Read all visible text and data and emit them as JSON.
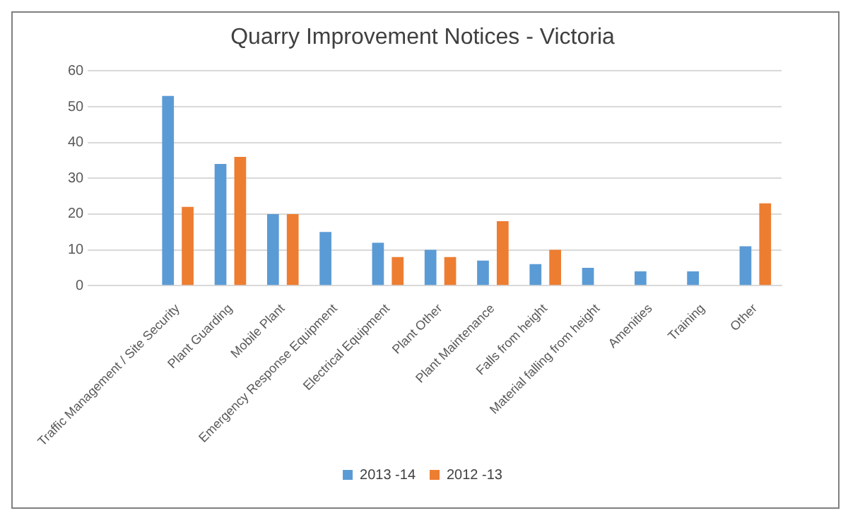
{
  "chart_data": {
    "type": "bar",
    "title": "Quarry Improvement Notices - Victoria",
    "categories": [
      null,
      "Traffic Management / Site Security",
      "Plant Guarding",
      "Mobile Plant",
      "Emergency Response Equipment",
      "Electrical Equipment",
      "Plant Other",
      "Plant Maintenance",
      "Falls from height",
      "Material falling from height",
      "Amenities",
      "Training",
      "Other"
    ],
    "series": [
      {
        "name": "2013 -14",
        "color": "#5b9bd5",
        "values": [
          null,
          53,
          34,
          20,
          15,
          12,
          10,
          7,
          6,
          5,
          4,
          4,
          11
        ]
      },
      {
        "name": "2012 -13",
        "color": "#ed7d31",
        "values": [
          null,
          22,
          36,
          20,
          null,
          8,
          8,
          18,
          10,
          null,
          null,
          null,
          23
        ]
      }
    ],
    "ylim": [
      0,
      60
    ],
    "yticks": [
      0,
      10,
      20,
      30,
      40,
      50,
      60
    ],
    "grid": "y",
    "legend": "bottom"
  }
}
